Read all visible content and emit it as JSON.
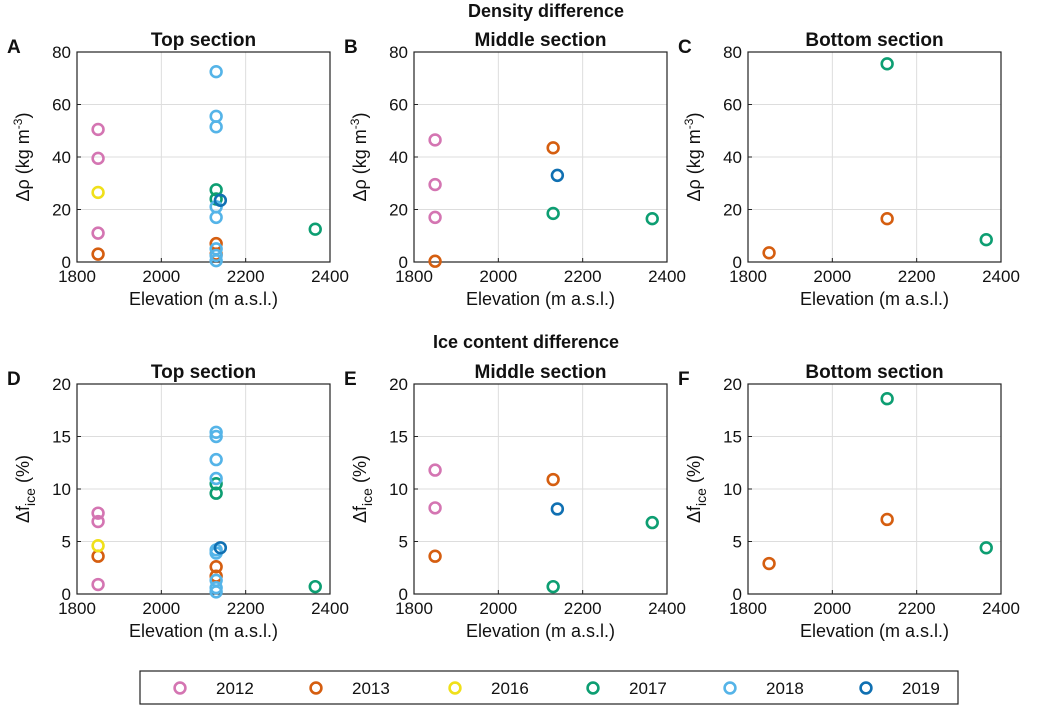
{
  "figure": {
    "row_titles": [
      "Density difference",
      "Ice content difference"
    ],
    "legend": [
      {
        "name": "2012",
        "color": "#d475b2"
      },
      {
        "name": "2013",
        "color": "#d55e10"
      },
      {
        "name": "2016",
        "color": "#f0e01a"
      },
      {
        "name": "2017",
        "color": "#0d9e72"
      },
      {
        "name": "2018",
        "color": "#55b4e8"
      },
      {
        "name": "2019",
        "color": "#1070b2"
      }
    ]
  },
  "chart_data": [
    {
      "type": "scatter",
      "panel": "A",
      "title": "Top section",
      "xlabel": "Elevation (m a.s.l.)",
      "ylabel": "Δρ (kg m⁻³)",
      "xlim": [
        1800,
        2400
      ],
      "ylim": [
        0,
        80
      ],
      "xticks": [
        "1800",
        "2000",
        "2200",
        "2400"
      ],
      "yticks": [
        "0",
        "20",
        "40",
        "60",
        "80"
      ],
      "series": [
        {
          "name": "2012",
          "points": [
            [
              1850,
              50.5
            ],
            [
              1850,
              39.5
            ],
            [
              1850,
              11
            ]
          ]
        },
        {
          "name": "2013",
          "points": [
            [
              1850,
              3
            ],
            [
              2130,
              7
            ],
            [
              2130,
              3
            ]
          ]
        },
        {
          "name": "2016",
          "points": [
            [
              1850,
              26.5
            ]
          ]
        },
        {
          "name": "2017",
          "points": [
            [
              2130,
              27.5
            ],
            [
              2130,
              24
            ],
            [
              2365,
              12.5
            ]
          ]
        },
        {
          "name": "2018",
          "points": [
            [
              2130,
              72.5
            ],
            [
              2130,
              55.5
            ],
            [
              2130,
              51.5
            ],
            [
              2130,
              21
            ],
            [
              2130,
              17
            ],
            [
              2130,
              5
            ],
            [
              2130,
              2.5
            ],
            [
              2130,
              0.5
            ]
          ]
        },
        {
          "name": "2019",
          "points": [
            [
              2140,
              23.5
            ]
          ]
        }
      ]
    },
    {
      "type": "scatter",
      "panel": "B",
      "title": "Middle section",
      "xlabel": "Elevation (m a.s.l.)",
      "ylabel": "Δρ (kg m⁻³)",
      "xlim": [
        1800,
        2400
      ],
      "ylim": [
        0,
        80
      ],
      "xticks": [
        "1800",
        "2000",
        "2200",
        "2400"
      ],
      "yticks": [
        "0",
        "20",
        "40",
        "60",
        "80"
      ],
      "series": [
        {
          "name": "2012",
          "points": [
            [
              1850,
              46.5
            ],
            [
              1850,
              29.5
            ],
            [
              1850,
              17
            ]
          ]
        },
        {
          "name": "2013",
          "points": [
            [
              1850,
              0.3
            ],
            [
              2130,
              43.5
            ]
          ]
        },
        {
          "name": "2017",
          "points": [
            [
              2130,
              18.5
            ],
            [
              2365,
              16.5
            ]
          ]
        },
        {
          "name": "2019",
          "points": [
            [
              2140,
              33
            ]
          ]
        }
      ]
    },
    {
      "type": "scatter",
      "panel": "C",
      "title": "Bottom section",
      "xlabel": "Elevation (m a.s.l.)",
      "ylabel": "Δρ (kg m⁻³)",
      "xlim": [
        1800,
        2400
      ],
      "ylim": [
        0,
        80
      ],
      "xticks": [
        "1800",
        "2000",
        "2200",
        "2400"
      ],
      "yticks": [
        "0",
        "20",
        "40",
        "60",
        "80"
      ],
      "series": [
        {
          "name": "2013",
          "points": [
            [
              1850,
              3.5
            ],
            [
              2130,
              16.5
            ]
          ]
        },
        {
          "name": "2017",
          "points": [
            [
              2130,
              75.5
            ],
            [
              2365,
              8.5
            ]
          ]
        }
      ]
    },
    {
      "type": "scatter",
      "panel": "D",
      "title": "Top section",
      "xlabel": "Elevation (m a.s.l.)",
      "ylabel": "Δf_ice (%)",
      "xlim": [
        1800,
        2400
      ],
      "ylim": [
        0,
        20
      ],
      "xticks": [
        "1800",
        "2000",
        "2200",
        "2400"
      ],
      "yticks": [
        "0",
        "5",
        "10",
        "15",
        "20"
      ],
      "series": [
        {
          "name": "2012",
          "points": [
            [
              1850,
              7.7
            ],
            [
              1850,
              6.9
            ],
            [
              1850,
              0.9
            ]
          ]
        },
        {
          "name": "2013",
          "points": [
            [
              1850,
              3.6
            ],
            [
              2130,
              2.6
            ],
            [
              2130,
              1.7
            ]
          ]
        },
        {
          "name": "2016",
          "points": [
            [
              1850,
              4.6
            ]
          ]
        },
        {
          "name": "2017",
          "points": [
            [
              2130,
              10.5
            ],
            [
              2130,
              9.6
            ],
            [
              2365,
              0.7
            ]
          ]
        },
        {
          "name": "2018",
          "points": [
            [
              2130,
              15.4
            ],
            [
              2130,
              15
            ],
            [
              2130,
              12.8
            ],
            [
              2130,
              11
            ],
            [
              2130,
              4.2
            ],
            [
              2130,
              3.9
            ],
            [
              2130,
              1.3
            ],
            [
              2130,
              0.6
            ],
            [
              2130,
              0.2
            ]
          ]
        },
        {
          "name": "2019",
          "points": [
            [
              2140,
              4.4
            ]
          ]
        }
      ]
    },
    {
      "type": "scatter",
      "panel": "E",
      "title": "Middle section",
      "xlabel": "Elevation (m a.s.l.)",
      "ylabel": "Δf_ice (%)",
      "xlim": [
        1800,
        2400
      ],
      "ylim": [
        0,
        20
      ],
      "xticks": [
        "1800",
        "2000",
        "2200",
        "2400"
      ],
      "yticks": [
        "0",
        "5",
        "10",
        "15",
        "20"
      ],
      "series": [
        {
          "name": "2012",
          "points": [
            [
              1850,
              11.8
            ],
            [
              1850,
              8.2
            ]
          ]
        },
        {
          "name": "2013",
          "points": [
            [
              1850,
              3.6
            ],
            [
              2130,
              10.9
            ]
          ]
        },
        {
          "name": "2017",
          "points": [
            [
              2130,
              0.7
            ],
            [
              2365,
              6.8
            ]
          ]
        },
        {
          "name": "2019",
          "points": [
            [
              2140,
              8.1
            ]
          ]
        }
      ]
    },
    {
      "type": "scatter",
      "panel": "F",
      "title": "Bottom section",
      "xlabel": "Elevation (m a.s.l.)",
      "ylabel": "Δf_ice (%)",
      "xlim": [
        1800,
        2400
      ],
      "ylim": [
        0,
        20
      ],
      "xticks": [
        "1800",
        "2000",
        "2200",
        "2400"
      ],
      "yticks": [
        "0",
        "5",
        "10",
        "15",
        "20"
      ],
      "series": [
        {
          "name": "2013",
          "points": [
            [
              1850,
              2.9
            ],
            [
              2130,
              7.1
            ]
          ]
        },
        {
          "name": "2017",
          "points": [
            [
              2130,
              18.6
            ],
            [
              2365,
              4.4
            ]
          ]
        }
      ]
    }
  ]
}
